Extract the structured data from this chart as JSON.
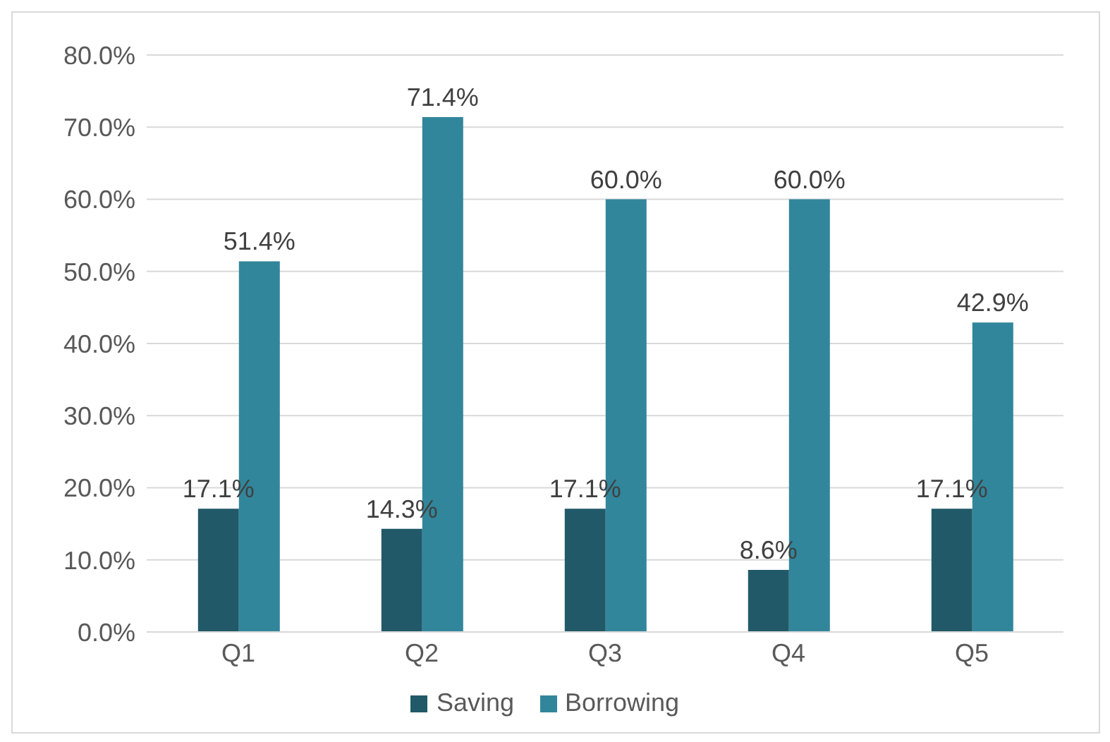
{
  "chart_data": {
    "type": "bar",
    "categories": [
      "Q1",
      "Q2",
      "Q3",
      "Q4",
      "Q5"
    ],
    "series": [
      {
        "name": "Saving",
        "color": "#215968",
        "values": [
          17.1,
          14.3,
          17.1,
          8.6,
          17.1
        ],
        "value_labels": [
          "17.1%",
          "14.3%",
          "17.1%",
          "8.6%",
          "17.1%"
        ]
      },
      {
        "name": "Borrowing",
        "color": "#31869b",
        "values": [
          51.4,
          71.4,
          60.0,
          60.0,
          42.9
        ],
        "value_labels": [
          "51.4%",
          "71.4%",
          "60.0%",
          "60.0%",
          "42.9%"
        ]
      }
    ],
    "ylim": [
      0,
      80
    ],
    "yticks": [
      {
        "value": 0,
        "label": "0.0%"
      },
      {
        "value": 10,
        "label": "10.0%"
      },
      {
        "value": 20,
        "label": "20.0%"
      },
      {
        "value": 30,
        "label": "30.0%"
      },
      {
        "value": 40,
        "label": "40.0%"
      },
      {
        "value": 50,
        "label": "50.0%"
      },
      {
        "value": 60,
        "label": "60.0%"
      },
      {
        "value": 70,
        "label": "70.0%"
      },
      {
        "value": 80,
        "label": "80.0%"
      }
    ],
    "grid": "y",
    "legend": "bottom"
  }
}
